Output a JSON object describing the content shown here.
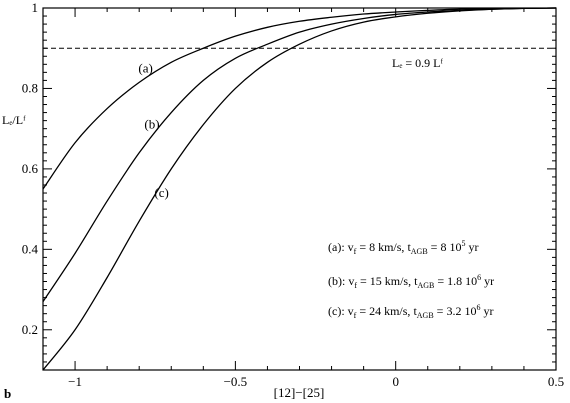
{
  "panel_label": "b",
  "chart_data": {
    "type": "line",
    "xlabel": "[12]−[25]",
    "ylabel": "Lₑ/Lᶠ",
    "xlim": [
      -1.1,
      0.5
    ],
    "ylim": [
      0.1,
      1.0
    ],
    "x_ticks": [
      -1,
      -0.5,
      0,
      0.5
    ],
    "x_tick_labels": [
      "−1",
      "−0.5",
      "0",
      "0.5"
    ],
    "y_ticks": [
      0.2,
      0.4,
      0.6,
      0.8,
      1.0
    ],
    "y_tick_labels": [
      "0.2",
      "0.4",
      "0.6",
      "0.8",
      "1"
    ],
    "grid": false,
    "series": [
      {
        "name": "(a)",
        "x": [
          -1.1,
          -1.0,
          -0.9,
          -0.8,
          -0.7,
          -0.6,
          -0.5,
          -0.4,
          -0.3,
          -0.2,
          -0.1,
          0.0,
          0.1,
          0.2,
          0.3,
          0.4,
          0.5
        ],
        "y": [
          0.55,
          0.665,
          0.75,
          0.815,
          0.865,
          0.9,
          0.93,
          0.952,
          0.967,
          0.977,
          0.985,
          0.99,
          0.994,
          0.997,
          0.998,
          0.999,
          1.0
        ]
      },
      {
        "name": "(b)",
        "x": [
          -1.1,
          -1.0,
          -0.9,
          -0.8,
          -0.7,
          -0.6,
          -0.5,
          -0.4,
          -0.3,
          -0.2,
          -0.1,
          0.0,
          0.1,
          0.2,
          0.3,
          0.4,
          0.5
        ],
        "y": [
          0.27,
          0.39,
          0.52,
          0.64,
          0.74,
          0.82,
          0.875,
          0.91,
          0.94,
          0.96,
          0.974,
          0.984,
          0.99,
          0.994,
          0.997,
          0.999,
          1.0
        ]
      },
      {
        "name": "(c)",
        "x": [
          -1.1,
          -1.0,
          -0.9,
          -0.8,
          -0.7,
          -0.6,
          -0.5,
          -0.4,
          -0.3,
          -0.2,
          -0.1,
          0.0,
          0.1,
          0.2,
          0.3,
          0.4,
          0.5
        ],
        "y": [
          0.1,
          0.2,
          0.33,
          0.47,
          0.6,
          0.71,
          0.8,
          0.865,
          0.91,
          0.943,
          0.965,
          0.978,
          0.987,
          0.993,
          0.997,
          0.999,
          1.0
        ]
      }
    ],
    "reference_line": {
      "y": 0.9,
      "style": "dashed",
      "label": "Lₑ = 0.9 Lᶠ"
    },
    "curve_labels": [
      {
        "text": "(a)",
        "x": -0.78,
        "y": 0.84
      },
      {
        "text": "(b)",
        "x": -0.76,
        "y": 0.7
      },
      {
        "text": "(c)",
        "x": -0.73,
        "y": 0.53
      }
    ],
    "annotations": [
      {
        "prefix": "(a):",
        "v_sym": "v",
        "v_sub": "f",
        "v_val": "=  8 km/s,",
        "t_sym": "t",
        "t_sub": "AGB",
        "t_val": "=   8 10",
        "t_exp": "5",
        "t_unit": "yr"
      },
      {
        "prefix": "(b):",
        "v_sym": "v",
        "v_sub": "f",
        "v_val": "= 15 km/s,",
        "t_sym": "t",
        "t_sub": "AGB",
        "t_val": "= 1.8 10",
        "t_exp": "6",
        "t_unit": "yr"
      },
      {
        "prefix": "(c):",
        "v_sym": "v",
        "v_sub": "f",
        "v_val": "= 24 km/s,",
        "t_sym": "t",
        "t_sub": "AGB",
        "t_val": "= 3.2 10",
        "t_exp": "6",
        "t_unit": "yr"
      }
    ]
  }
}
